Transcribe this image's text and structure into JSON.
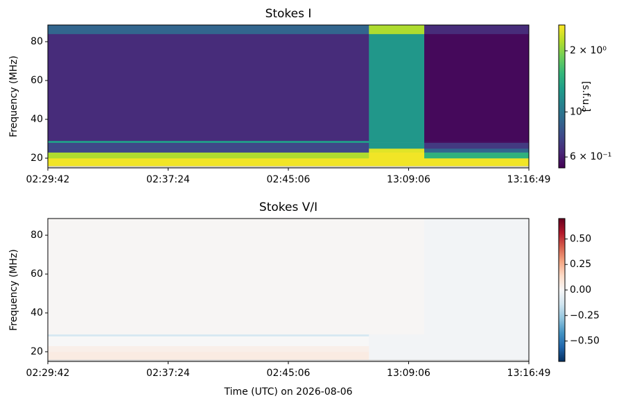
{
  "chart_data": [
    {
      "type": "heatmap",
      "title": "Stokes I",
      "ylabel": "Frequency (MHz)",
      "xlim": [
        0,
        4
      ],
      "xticks": [
        {
          "value": 0,
          "label": "02:29:42"
        },
        {
          "value": 1,
          "label": "02:37:24"
        },
        {
          "value": 2,
          "label": "02:45:06"
        },
        {
          "value": 3,
          "label": "13:09:06"
        },
        {
          "value": 4,
          "label": "13:16:49"
        }
      ],
      "ylim": [
        15,
        88.6
      ],
      "yticks": [
        20,
        40,
        60,
        80
      ],
      "x_edges": [
        0,
        2.67,
        3.13,
        4
      ],
      "y_edges": [
        15,
        16,
        20,
        23,
        25,
        28,
        29,
        84,
        88.6
      ],
      "values": [
        [
          null,
          2.6,
          2.2,
          0.75,
          0.75,
          1.3,
          0.65,
          0.9
        ],
        [
          null,
          2.6,
          2.6,
          2.5,
          1.25,
          1.25,
          1.25,
          2.2
        ],
        [
          null,
          2.6,
          1.5,
          0.9,
          0.7,
          0.56,
          0.55,
          0.65
        ]
      ],
      "colormap": "viridis",
      "color_scale": "log",
      "clim": [
        0.53,
        2.68
      ],
      "colorbar_label": "[s.f.u.]",
      "colorbar_ticks": [
        {
          "value": 2,
          "label": "2 × 10⁰"
        },
        {
          "value": 1,
          "label": "10⁰"
        },
        {
          "value": 0.6,
          "label": "6 × 10⁻¹"
        }
      ]
    },
    {
      "type": "heatmap",
      "title": "Stokes V/I",
      "ylabel": "Frequency (MHz)",
      "xlabel": "Time (UTC) on 2026-08-06",
      "xlim": [
        0,
        4
      ],
      "xticks": [
        {
          "value": 0,
          "label": "02:29:42"
        },
        {
          "value": 1,
          "label": "02:37:24"
        },
        {
          "value": 2,
          "label": "02:45:06"
        },
        {
          "value": 3,
          "label": "13:09:06"
        },
        {
          "value": 4,
          "label": "13:16:49"
        }
      ],
      "ylim": [
        15,
        88.6
      ],
      "yticks": [
        20,
        40,
        60,
        80
      ],
      "x_edges": [
        0,
        2.67,
        3.13,
        4
      ],
      "y_edges": [
        15,
        16,
        20,
        23,
        25,
        28,
        29,
        84,
        88.6
      ],
      "values": [
        [
          null,
          0.06,
          0.04,
          0.0,
          0.0,
          -0.12,
          0.01,
          0.01
        ],
        [
          null,
          -0.02,
          -0.02,
          -0.02,
          -0.02,
          -0.02,
          0.01,
          0.01
        ],
        [
          null,
          -0.02,
          -0.02,
          -0.02,
          -0.02,
          -0.02,
          -0.02,
          -0.02
        ]
      ],
      "colormap": "RdBu_r",
      "color_scale": "linear",
      "clim": [
        -0.7,
        0.7
      ],
      "colorbar_ticks": [
        {
          "value": 0.5,
          "label": "0.50"
        },
        {
          "value": 0.25,
          "label": "0.25"
        },
        {
          "value": 0,
          "label": "0.00"
        },
        {
          "value": -0.25,
          "label": "−0.25"
        },
        {
          "value": -0.5,
          "label": "−0.50"
        }
      ]
    }
  ]
}
